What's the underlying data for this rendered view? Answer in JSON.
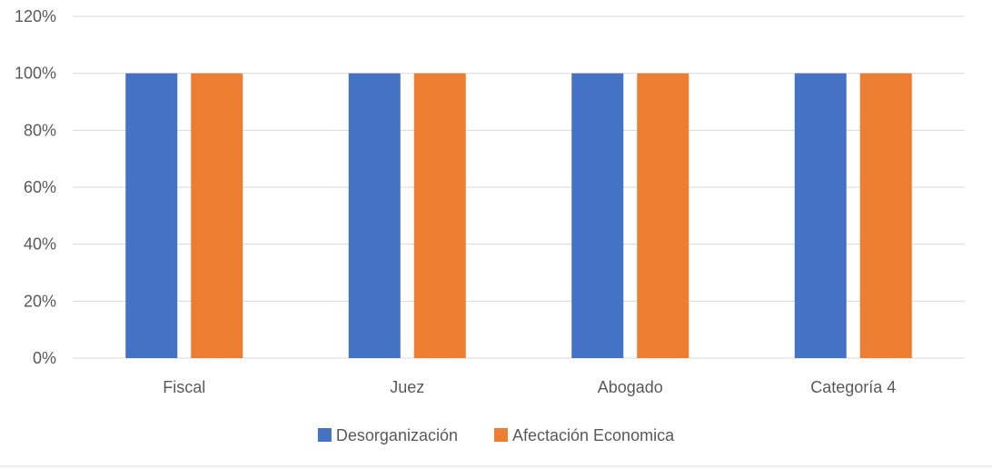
{
  "chart_data": {
    "type": "bar",
    "categories": [
      "Fiscal",
      "Juez",
      "Abogado",
      "Categoría 4"
    ],
    "series": [
      {
        "name": "Desorganización",
        "values": [
          100,
          100,
          100,
          100
        ],
        "color": "#4472C4"
      },
      {
        "name": "Afectación Economica",
        "values": [
          100,
          100,
          100,
          100
        ],
        "color": "#ED7D31"
      }
    ],
    "ylim": [
      0,
      120
    ],
    "yticks": [
      0,
      20,
      40,
      60,
      80,
      100,
      120
    ],
    "ytick_format": "percent",
    "grid": true,
    "legend_position": "bottom",
    "gridline_color": "#D9D9D9"
  }
}
